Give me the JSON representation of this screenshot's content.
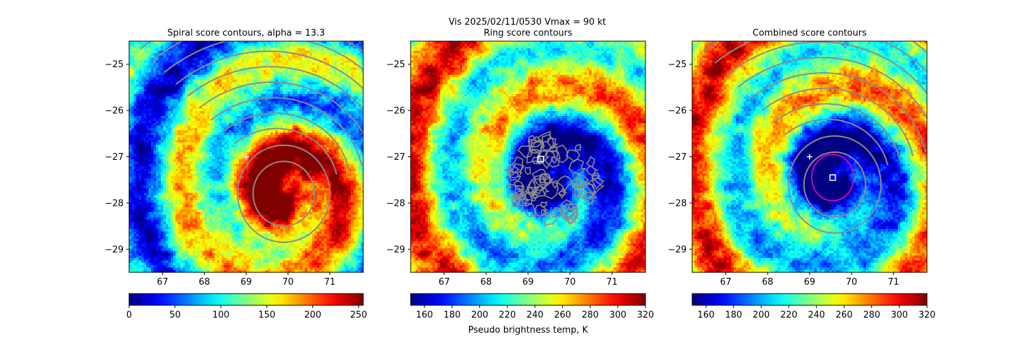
{
  "suptitle": {
    "line1": "Vis  2025/02/11/0530    Vmax = 90 kt"
  },
  "colors": {
    "contour": "#8c8c8c",
    "ring_circle": "#cc00cc",
    "marker": "#ffffff",
    "colormap": "jet"
  },
  "chart_data": [
    {
      "type": "heatmap",
      "title": "Spiral score contours, alpha = 13.3",
      "xlim": [
        66.2,
        71.8
      ],
      "ylim": [
        -29.5,
        -24.5
      ],
      "x_ticks": [
        67,
        68,
        69,
        70,
        71
      ],
      "y_ticks": [
        -25,
        -26,
        -27,
        -28,
        -29
      ],
      "colorbar": {
        "range": [
          0,
          255
        ],
        "reversed": true,
        "ticks": [
          0,
          50,
          100,
          150,
          200,
          250
        ],
        "label": ""
      },
      "markers": [
        {
          "shape": "plus",
          "x": 69.0,
          "y": -27.0
        }
      ],
      "contour_overlay": "spiral bands + closed rings around (69.9, -27.8)"
    },
    {
      "type": "heatmap",
      "title": "Ring score contours",
      "xlim": [
        66.2,
        71.8
      ],
      "ylim": [
        -29.5,
        -24.5
      ],
      "x_ticks": [
        67,
        68,
        69,
        70,
        71
      ],
      "y_ticks": [
        -25,
        -26,
        -27,
        -28,
        -29
      ],
      "colorbar": {
        "range": [
          150,
          320
        ],
        "reversed": false,
        "ticks": [
          160,
          180,
          200,
          220,
          240,
          260,
          280,
          300,
          320
        ],
        "label": "Pseudo brightness temp, K"
      },
      "markers": [
        {
          "shape": "square",
          "x": 69.3,
          "y": -27.05
        }
      ],
      "contour_overlay": "dense noisy region centered near (69.6, -27.5)"
    },
    {
      "type": "heatmap",
      "title": "Combined score contours",
      "xlim": [
        66.2,
        71.8
      ],
      "ylim": [
        -29.5,
        -24.5
      ],
      "x_ticks": [
        67,
        68,
        69,
        70,
        71
      ],
      "y_ticks": [
        -25,
        -26,
        -27,
        -28,
        -29
      ],
      "colorbar": {
        "range": [
          150,
          320
        ],
        "reversed": false,
        "ticks": [
          160,
          180,
          200,
          220,
          240,
          260,
          280,
          300,
          320
        ],
        "label": ""
      },
      "markers": [
        {
          "shape": "plus",
          "x": 69.0,
          "y": -27.0
        },
        {
          "shape": "square",
          "x": 69.55,
          "y": -27.45
        }
      ],
      "circle": {
        "x": 69.55,
        "y": -27.45,
        "radius_deg": 0.5
      },
      "contour_overlay": "spiral bands + closed rings around (69.6, -27.6)"
    }
  ]
}
